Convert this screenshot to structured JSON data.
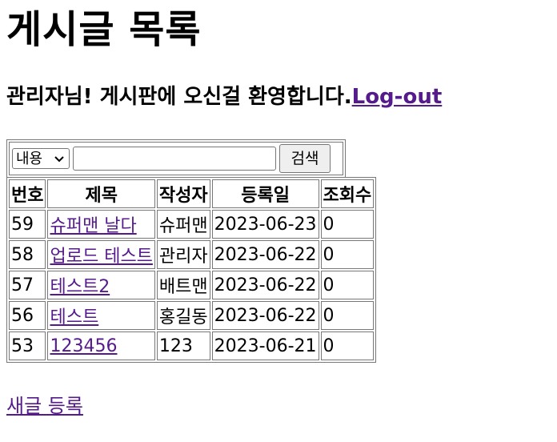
{
  "page": {
    "title": "게시글 목록",
    "welcome_text": "관리자님! 게시판에 오신걸 환영합니다.",
    "logout_label": "Log-out",
    "new_post_label": "새글 등록"
  },
  "search": {
    "selected_option": "내용",
    "query": "",
    "button_label": "검색"
  },
  "table": {
    "headers": [
      "번호",
      "제목",
      "작성자",
      "등록일",
      "조회수"
    ],
    "rows": [
      {
        "num": "59",
        "title": "슈퍼맨 날다",
        "writer": "슈퍼맨",
        "date": "2023-06-23",
        "views": "0"
      },
      {
        "num": "58",
        "title": "업로드 테스트",
        "writer": "관리자",
        "date": "2023-06-22",
        "views": "0"
      },
      {
        "num": "57",
        "title": "테스트2",
        "writer": "배트맨",
        "date": "2023-06-22",
        "views": "0"
      },
      {
        "num": "56",
        "title": "테스트",
        "writer": "홍길동",
        "date": "2023-06-22",
        "views": "0"
      },
      {
        "num": "53",
        "title": "123456",
        "writer": "123",
        "date": "2023-06-21",
        "views": "0"
      }
    ]
  },
  "colors": {
    "link": "#551a8b"
  },
  "icons": {
    "select_arrow": "chevron-down-icon"
  }
}
